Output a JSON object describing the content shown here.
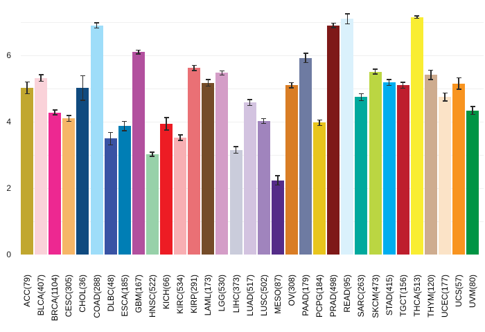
{
  "chart_data": {
    "type": "bar",
    "title": "",
    "xlabel": "",
    "ylabel": "",
    "legend": "none",
    "grid": "horizontal-light",
    "error_bars": true,
    "ylim": [
      0,
      7.5
    ],
    "yticks": [
      {
        "label": "0",
        "value": 0
      },
      {
        "label": "2",
        "value": 2
      },
      {
        "label": "4",
        "value": 4
      },
      {
        "label": "6",
        "value": 6
      }
    ],
    "gridline_values": [
      1,
      2,
      3,
      4,
      5,
      6,
      7
    ],
    "categories": [
      "ACC(79)",
      "BLCA(407)",
      "BRCA(1104)",
      "CESC(305)",
      "CHOL(36)",
      "COAD(288)",
      "DLBC(48)",
      "ESCA(185)",
      "GBM(167)",
      "HNSC(522)",
      "KICH(66)",
      "KIRC(534)",
      "KIRP(291)",
      "LAML(173)",
      "LGG(530)",
      "LIHC(373)",
      "LUAD(517)",
      "LUSC(502)",
      "MESO(87)",
      "OV(308)",
      "PAAD(179)",
      "PCPG(184)",
      "PRAD(498)",
      "READ(95)",
      "SARC(263)",
      "SKCM(473)",
      "STAD(415)",
      "TGCT(156)",
      "THCA(513)",
      "THYM(120)",
      "UCEC(177)",
      "UCS(57)",
      "UVM(80)"
    ],
    "values": [
      5.02,
      5.32,
      4.28,
      4.1,
      5.02,
      6.9,
      3.49,
      3.87,
      6.1,
      3.02,
      3.94,
      3.52,
      5.62,
      5.17,
      5.47,
      3.15,
      4.58,
      4.02,
      2.23,
      5.1,
      5.92,
      3.97,
      6.9,
      7.1,
      4.74,
      5.51,
      5.18,
      5.1,
      7.15,
      5.41,
      4.74,
      5.15,
      4.34
    ],
    "errors": [
      0.18,
      0.1,
      0.07,
      0.09,
      0.37,
      0.08,
      0.19,
      0.14,
      0.06,
      0.06,
      0.19,
      0.08,
      0.08,
      0.1,
      0.06,
      0.1,
      0.09,
      0.07,
      0.14,
      0.08,
      0.14,
      0.08,
      0.07,
      0.15,
      0.1,
      0.07,
      0.09,
      0.09,
      0.04,
      0.14,
      0.12,
      0.17,
      0.12
    ],
    "colors": [
      "#C1A72F",
      "#FAD2D9",
      "#ED2891",
      "#F6B667",
      "#104A7F",
      "#9EDDF9",
      "#3953A4",
      "#007EB5",
      "#B2509E",
      "#97D1A9",
      "#ED1C24",
      "#F8AFB3",
      "#EA7075",
      "#754C29",
      "#D49DC7",
      "#CACCDB",
      "#D3C3E0",
      "#A084BD",
      "#542C88",
      "#D97D25",
      "#6E7BA2",
      "#E8C51D",
      "#7E1918",
      "#DAF1FC",
      "#00A99D",
      "#BBD642",
      "#00AEEF",
      "#BE1E2D",
      "#F9ED32",
      "#CEAC8F",
      "#FBE3C7",
      "#F89420",
      "#009444"
    ],
    "error_bar_color": "#2a2a2a",
    "background_color": "#ffffff"
  }
}
